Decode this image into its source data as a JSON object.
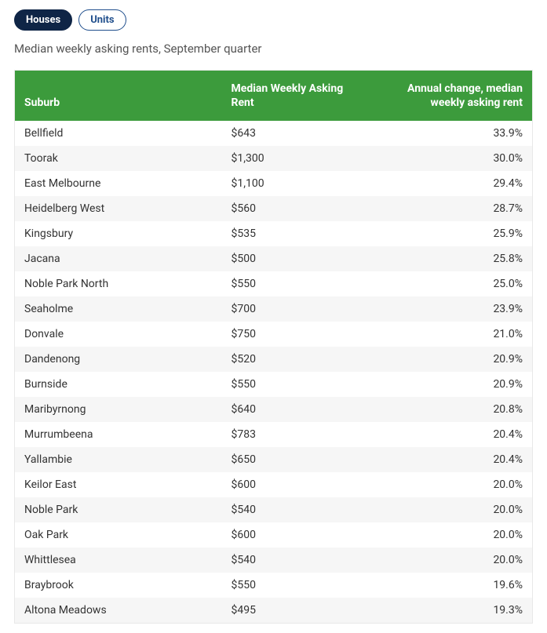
{
  "tabs": {
    "active": "Houses",
    "inactive": "Units"
  },
  "subtitle": "Median weekly asking rents, September quarter",
  "table": {
    "header_bg": "#3c9b3c",
    "header_color": "#ffffff",
    "row_alt_bg": "#f6f6f6",
    "columns": {
      "suburb": "Suburb",
      "rent": "Median Weekly Asking Rent",
      "change": "Annual change, median weekly asking rent"
    },
    "rows": [
      {
        "suburb": "Bellfield",
        "rent": "$643",
        "change": "33.9%"
      },
      {
        "suburb": "Toorak",
        "rent": "$1,300",
        "change": "30.0%"
      },
      {
        "suburb": "East Melbourne",
        "rent": "$1,100",
        "change": "29.4%"
      },
      {
        "suburb": "Heidelberg West",
        "rent": "$560",
        "change": "28.7%"
      },
      {
        "suburb": "Kingsbury",
        "rent": "$535",
        "change": "25.9%"
      },
      {
        "suburb": "Jacana",
        "rent": "$500",
        "change": "25.8%"
      },
      {
        "suburb": "Noble Park North",
        "rent": "$550",
        "change": "25.0%"
      },
      {
        "suburb": "Seaholme",
        "rent": "$700",
        "change": "23.9%"
      },
      {
        "suburb": "Donvale",
        "rent": "$750",
        "change": "21.0%"
      },
      {
        "suburb": "Dandenong",
        "rent": "$520",
        "change": "20.9%"
      },
      {
        "suburb": "Burnside",
        "rent": "$550",
        "change": "20.9%"
      },
      {
        "suburb": "Maribyrnong",
        "rent": "$640",
        "change": "20.8%"
      },
      {
        "suburb": "Murrumbeena",
        "rent": "$783",
        "change": "20.4%"
      },
      {
        "suburb": "Yallambie",
        "rent": "$650",
        "change": "20.4%"
      },
      {
        "suburb": "Keilor East",
        "rent": "$600",
        "change": "20.0%"
      },
      {
        "suburb": "Noble Park",
        "rent": "$540",
        "change": "20.0%"
      },
      {
        "suburb": "Oak Park",
        "rent": "$600",
        "change": "20.0%"
      },
      {
        "suburb": "Whittlesea",
        "rent": "$540",
        "change": "20.0%"
      },
      {
        "suburb": "Braybrook",
        "rent": "$550",
        "change": "19.6%"
      },
      {
        "suburb": "Altona Meadows",
        "rent": "$495",
        "change": "19.3%"
      }
    ]
  }
}
